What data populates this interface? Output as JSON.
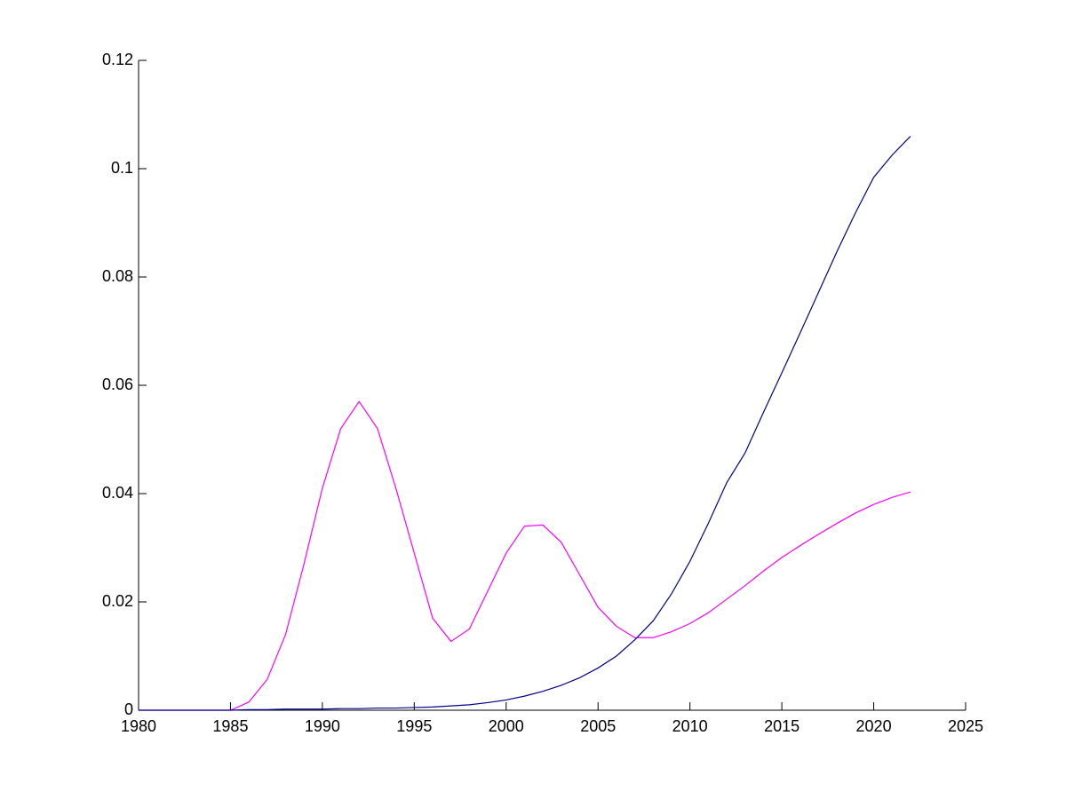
{
  "chart_data": {
    "type": "line",
    "x": [
      1980,
      1981,
      1982,
      1983,
      1984,
      1985,
      1986,
      1987,
      1988,
      1989,
      1990,
      1991,
      1992,
      1993,
      1994,
      1995,
      1996,
      1997,
      1998,
      1999,
      2000,
      2001,
      2002,
      2003,
      2004,
      2005,
      2006,
      2007,
      2008,
      2009,
      2010,
      2011,
      2012,
      2013,
      2014,
      2015,
      2016,
      2017,
      2018,
      2019,
      2020,
      2021,
      2022
    ],
    "series": [
      {
        "color": "#ff00ff",
        "values": [
          0,
          0,
          0,
          0,
          0,
          0,
          0.0015,
          0.0057,
          0.014,
          0.027,
          0.041,
          0.052,
          0.057,
          0.052,
          0.041,
          0.029,
          0.017,
          0.0127,
          0.015,
          0.022,
          0.029,
          0.034,
          0.0342,
          0.031,
          0.025,
          0.019,
          0.0155,
          0.0134,
          0.0134,
          0.0145,
          0.016,
          0.018,
          0.0205,
          0.023,
          0.0257,
          0.0282,
          0.0304,
          0.0325,
          0.0345,
          0.0364,
          0.038,
          0.0393,
          0.0403
        ]
      },
      {
        "color": "#00008b",
        "values": [
          0,
          0,
          0,
          0,
          0,
          0,
          0.0001,
          0.0001,
          0.0002,
          0.0002,
          0.0002,
          0.0003,
          0.0003,
          0.0004,
          0.0004,
          0.0005,
          0.0006,
          0.0008,
          0.001,
          0.0014,
          0.0019,
          0.0026,
          0.0035,
          0.0046,
          0.006,
          0.0078,
          0.01,
          0.013,
          0.0165,
          0.0215,
          0.0275,
          0.0345,
          0.042,
          0.0475,
          0.055,
          0.0623,
          0.0697,
          0.0772,
          0.0847,
          0.0918,
          0.0984,
          0.1025,
          0.106
        ]
      }
    ],
    "xlim": [
      1980,
      2025
    ],
    "xticks": [
      1980,
      1985,
      1990,
      1995,
      2000,
      2005,
      2010,
      2015,
      2020,
      2025
    ],
    "ylim": [
      0,
      0.12
    ],
    "yticks": [
      0,
      0.02,
      0.04,
      0.06,
      0.08,
      0.1,
      0.12
    ]
  }
}
